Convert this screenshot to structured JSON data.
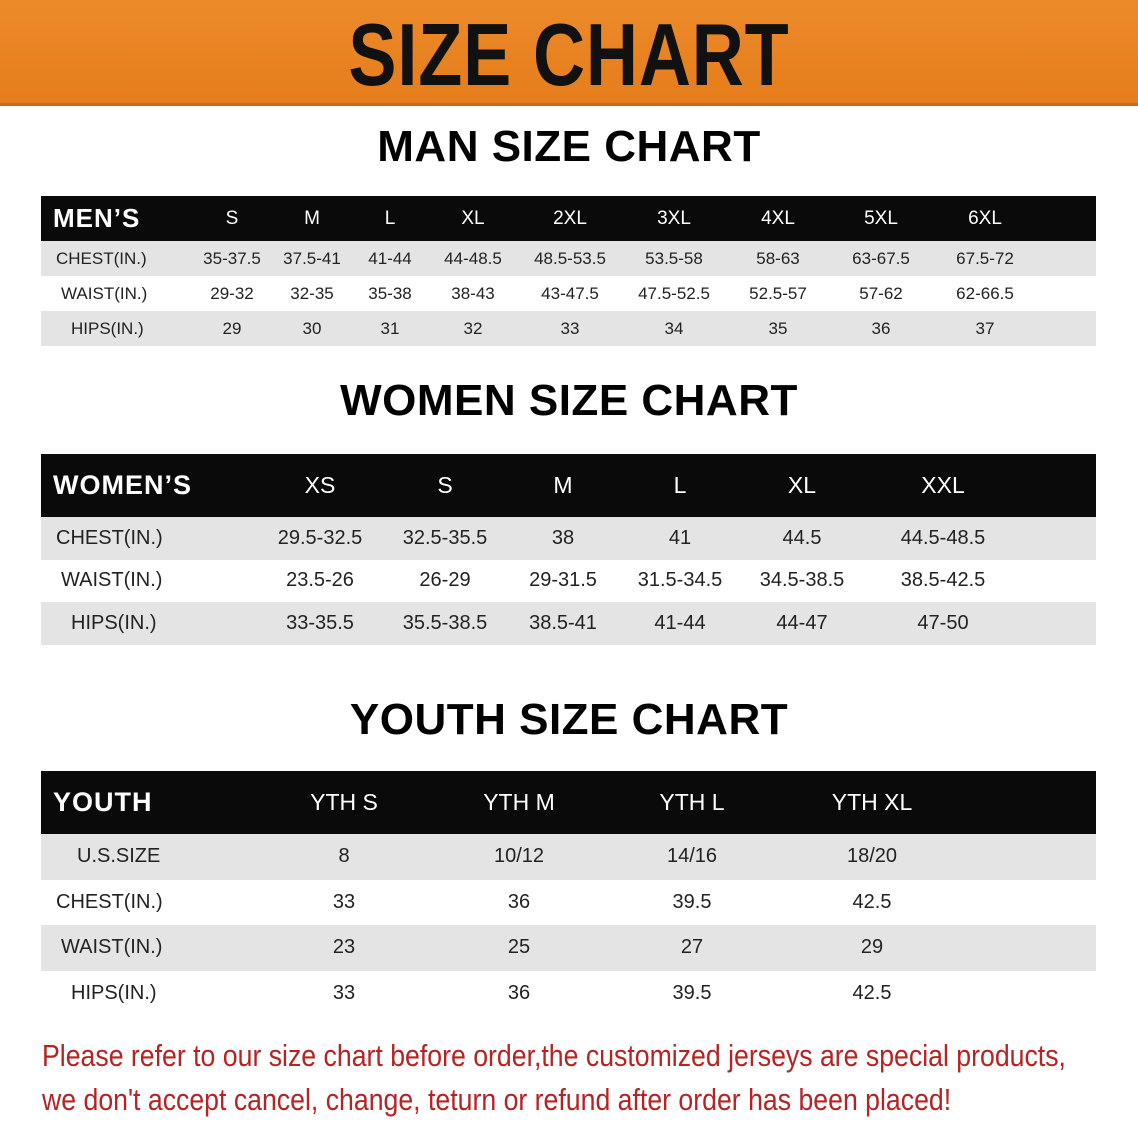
{
  "banner": {
    "title": "SIZE CHART",
    "color": "#e8821f"
  },
  "men": {
    "title": "MAN SIZE CHART",
    "header_label": "MEN’S",
    "sizes": [
      "S",
      "M",
      "L",
      "XL",
      "2XL",
      "3XL",
      "4XL",
      "5XL",
      "6XL"
    ],
    "rows": [
      {
        "label": "CHEST(IN.)",
        "values": [
          "35-37.5",
          "37.5-41",
          "41-44",
          "44-48.5",
          "48.5-53.5",
          "53.5-58",
          "58-63",
          "63-67.5",
          "67.5-72"
        ]
      },
      {
        "label": "WAIST(IN.)",
        "values": [
          "29-32",
          "32-35",
          "35-38",
          "38-43",
          "43-47.5",
          "47.5-52.5",
          "52.5-57",
          "57-62",
          "62-66.5"
        ]
      },
      {
        "label": "HIPS(IN.)",
        "values": [
          "29",
          "30",
          "31",
          "32",
          "33",
          "34",
          "35",
          "36",
          "37"
        ]
      }
    ]
  },
  "women": {
    "title": "WOMEN SIZE CHART",
    "header_label": "WOMEN’S",
    "sizes": [
      "XS",
      "S",
      "M",
      "L",
      "XL",
      "XXL"
    ],
    "rows": [
      {
        "label": "CHEST(IN.)",
        "values": [
          "29.5-32.5",
          "32.5-35.5",
          "38",
          "41",
          "44.5",
          "44.5-48.5"
        ]
      },
      {
        "label": "WAIST(IN.)",
        "values": [
          "23.5-26",
          "26-29",
          "29-31.5",
          "31.5-34.5",
          "34.5-38.5",
          "38.5-42.5"
        ]
      },
      {
        "label": "HIPS(IN.)",
        "values": [
          "33-35.5",
          "35.5-38.5",
          "38.5-41",
          "41-44",
          "44-47",
          "47-50"
        ]
      }
    ]
  },
  "youth": {
    "title": "YOUTH SIZE CHART",
    "header_label": "YOUTH",
    "sizes": [
      "YTH S",
      "YTH M",
      "YTH L",
      "YTH XL"
    ],
    "rows": [
      {
        "label": "U.S.SIZE",
        "values": [
          "8",
          "10/12",
          "14/16",
          "18/20"
        ]
      },
      {
        "label": "CHEST(IN.)",
        "values": [
          "33",
          "36",
          "39.5",
          "42.5"
        ]
      },
      {
        "label": "WAIST(IN.)",
        "values": [
          "23",
          "25",
          "27",
          "29"
        ]
      },
      {
        "label": "HIPS(IN.)",
        "values": [
          "33",
          "36",
          "39.5",
          "42.5"
        ]
      }
    ]
  },
  "notice": {
    "line1": "Please refer to our size chart before order,the customized jerseys are special products,",
    "line2": "we don't accept cancel, change, teturn or refund after order has been placed!",
    "color": "#b52424"
  }
}
